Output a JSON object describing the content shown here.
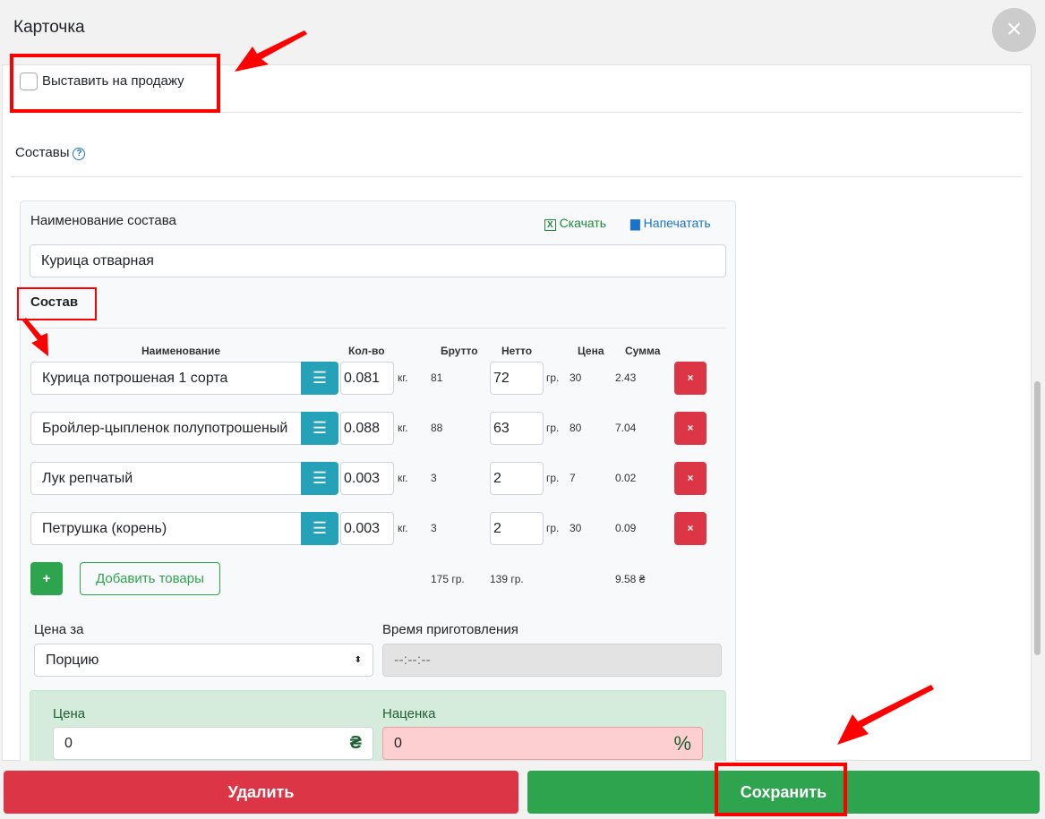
{
  "window": {
    "title": "Карточка"
  },
  "sale_checkbox": {
    "label": "Выставить на продажу",
    "checked": false
  },
  "compositions": {
    "label": "Составы",
    "help_icon": "?"
  },
  "panel": {
    "name_label": "Наименование состава",
    "download_label": "Скачать",
    "print_label": "Напечатать",
    "name_value": "Курица отварная",
    "section_title": "Состав",
    "columns": [
      "Наименование",
      "Кол-во",
      "Брутто",
      "Нетто",
      "Цена",
      "Сумма"
    ],
    "rows": [
      {
        "name": "Курица потрошеная 1 сорта",
        "qty": "0.081",
        "qty_unit": "кг.",
        "brutto": "81",
        "netto": "72",
        "netto_unit": "гр.",
        "price": "30",
        "sum": "2.43"
      },
      {
        "name": "Бройлер-цыпленок полупотрошеный",
        "qty": "0.088",
        "qty_unit": "кг.",
        "brutto": "88",
        "netto": "63",
        "netto_unit": "гр.",
        "price": "80",
        "sum": "7.04"
      },
      {
        "name": "Лук репчатый",
        "qty": "0.003",
        "qty_unit": "кг.",
        "brutto": "3",
        "netto": "2",
        "netto_unit": "гр.",
        "price": "7",
        "sum": "0.02"
      },
      {
        "name": "Петрушка (корень)",
        "qty": "0.003",
        "qty_unit": "кг.",
        "brutto": "3",
        "netto": "2",
        "netto_unit": "гр.",
        "price": "30",
        "sum": "0.09"
      }
    ],
    "delete_row_label": "×",
    "add_plus_label": "+",
    "add_goods_label": "Добавить товары",
    "totals": {
      "brutto": "175 гр.",
      "netto": "139 гр.",
      "sum": "9.58 ₴"
    },
    "price_for_label": "Цена за",
    "price_for_value": "Порцию",
    "cook_time_label": "Время приготовления",
    "cook_time_placeholder": "--:--:--",
    "price_label": "Цена",
    "price_value": "0",
    "price_unit": "₴",
    "markup_label": "Наценка",
    "markup_value": "0",
    "markup_unit": "%"
  },
  "footer": {
    "delete_label": "Удалить",
    "save_label": "Сохранить"
  },
  "colors": {
    "danger": "#dc3545",
    "success": "#2ea44f",
    "info": "#25a2b8",
    "annotation": "#ff0000"
  }
}
